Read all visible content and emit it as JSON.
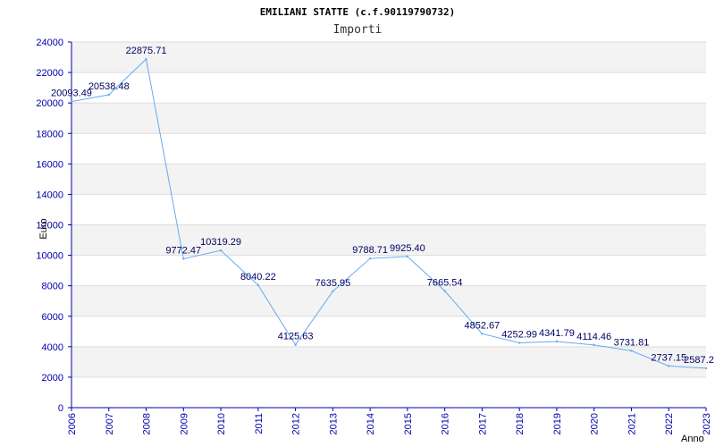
{
  "chart_data": {
    "type": "line",
    "title": "EMILIANI STATTE (c.f.90119790732)",
    "subtitle": "Importi",
    "xlabel": "Anno",
    "ylabel": "Euro",
    "ylim": [
      0,
      24000
    ],
    "yticks": [
      0,
      2000,
      4000,
      6000,
      8000,
      10000,
      12000,
      14000,
      16000,
      18000,
      20000,
      22000,
      24000
    ],
    "categories": [
      "2006",
      "2007",
      "2008",
      "2009",
      "2010",
      "2011",
      "2012",
      "2013",
      "2014",
      "2015",
      "2016",
      "2017",
      "2018",
      "2019",
      "2020",
      "2021",
      "2022",
      "2023"
    ],
    "values": [
      20093.49,
      20538.48,
      22875.71,
      9772.47,
      10319.29,
      8040.22,
      4125.63,
      7635.95,
      9788.71,
      9925.4,
      7665.54,
      4852.67,
      4252.99,
      4341.79,
      4114.46,
      3731.81,
      2737.15,
      2587.2
    ],
    "value_labels": [
      "20093.49",
      "20538.48",
      "22875.71",
      "9772.47",
      "10319.29",
      "8040.22",
      "4125.63",
      "7635.95",
      "9788.71",
      "9925.40",
      "7665.54",
      "4852.67",
      "4252.99",
      "4341.79",
      "4114.46",
      "3731.81",
      "2737.15",
      "2587.2"
    ],
    "grid": true,
    "line_color": "#66aaee",
    "band_color": "#f3f3f3",
    "axis_color": "#0000aa"
  }
}
